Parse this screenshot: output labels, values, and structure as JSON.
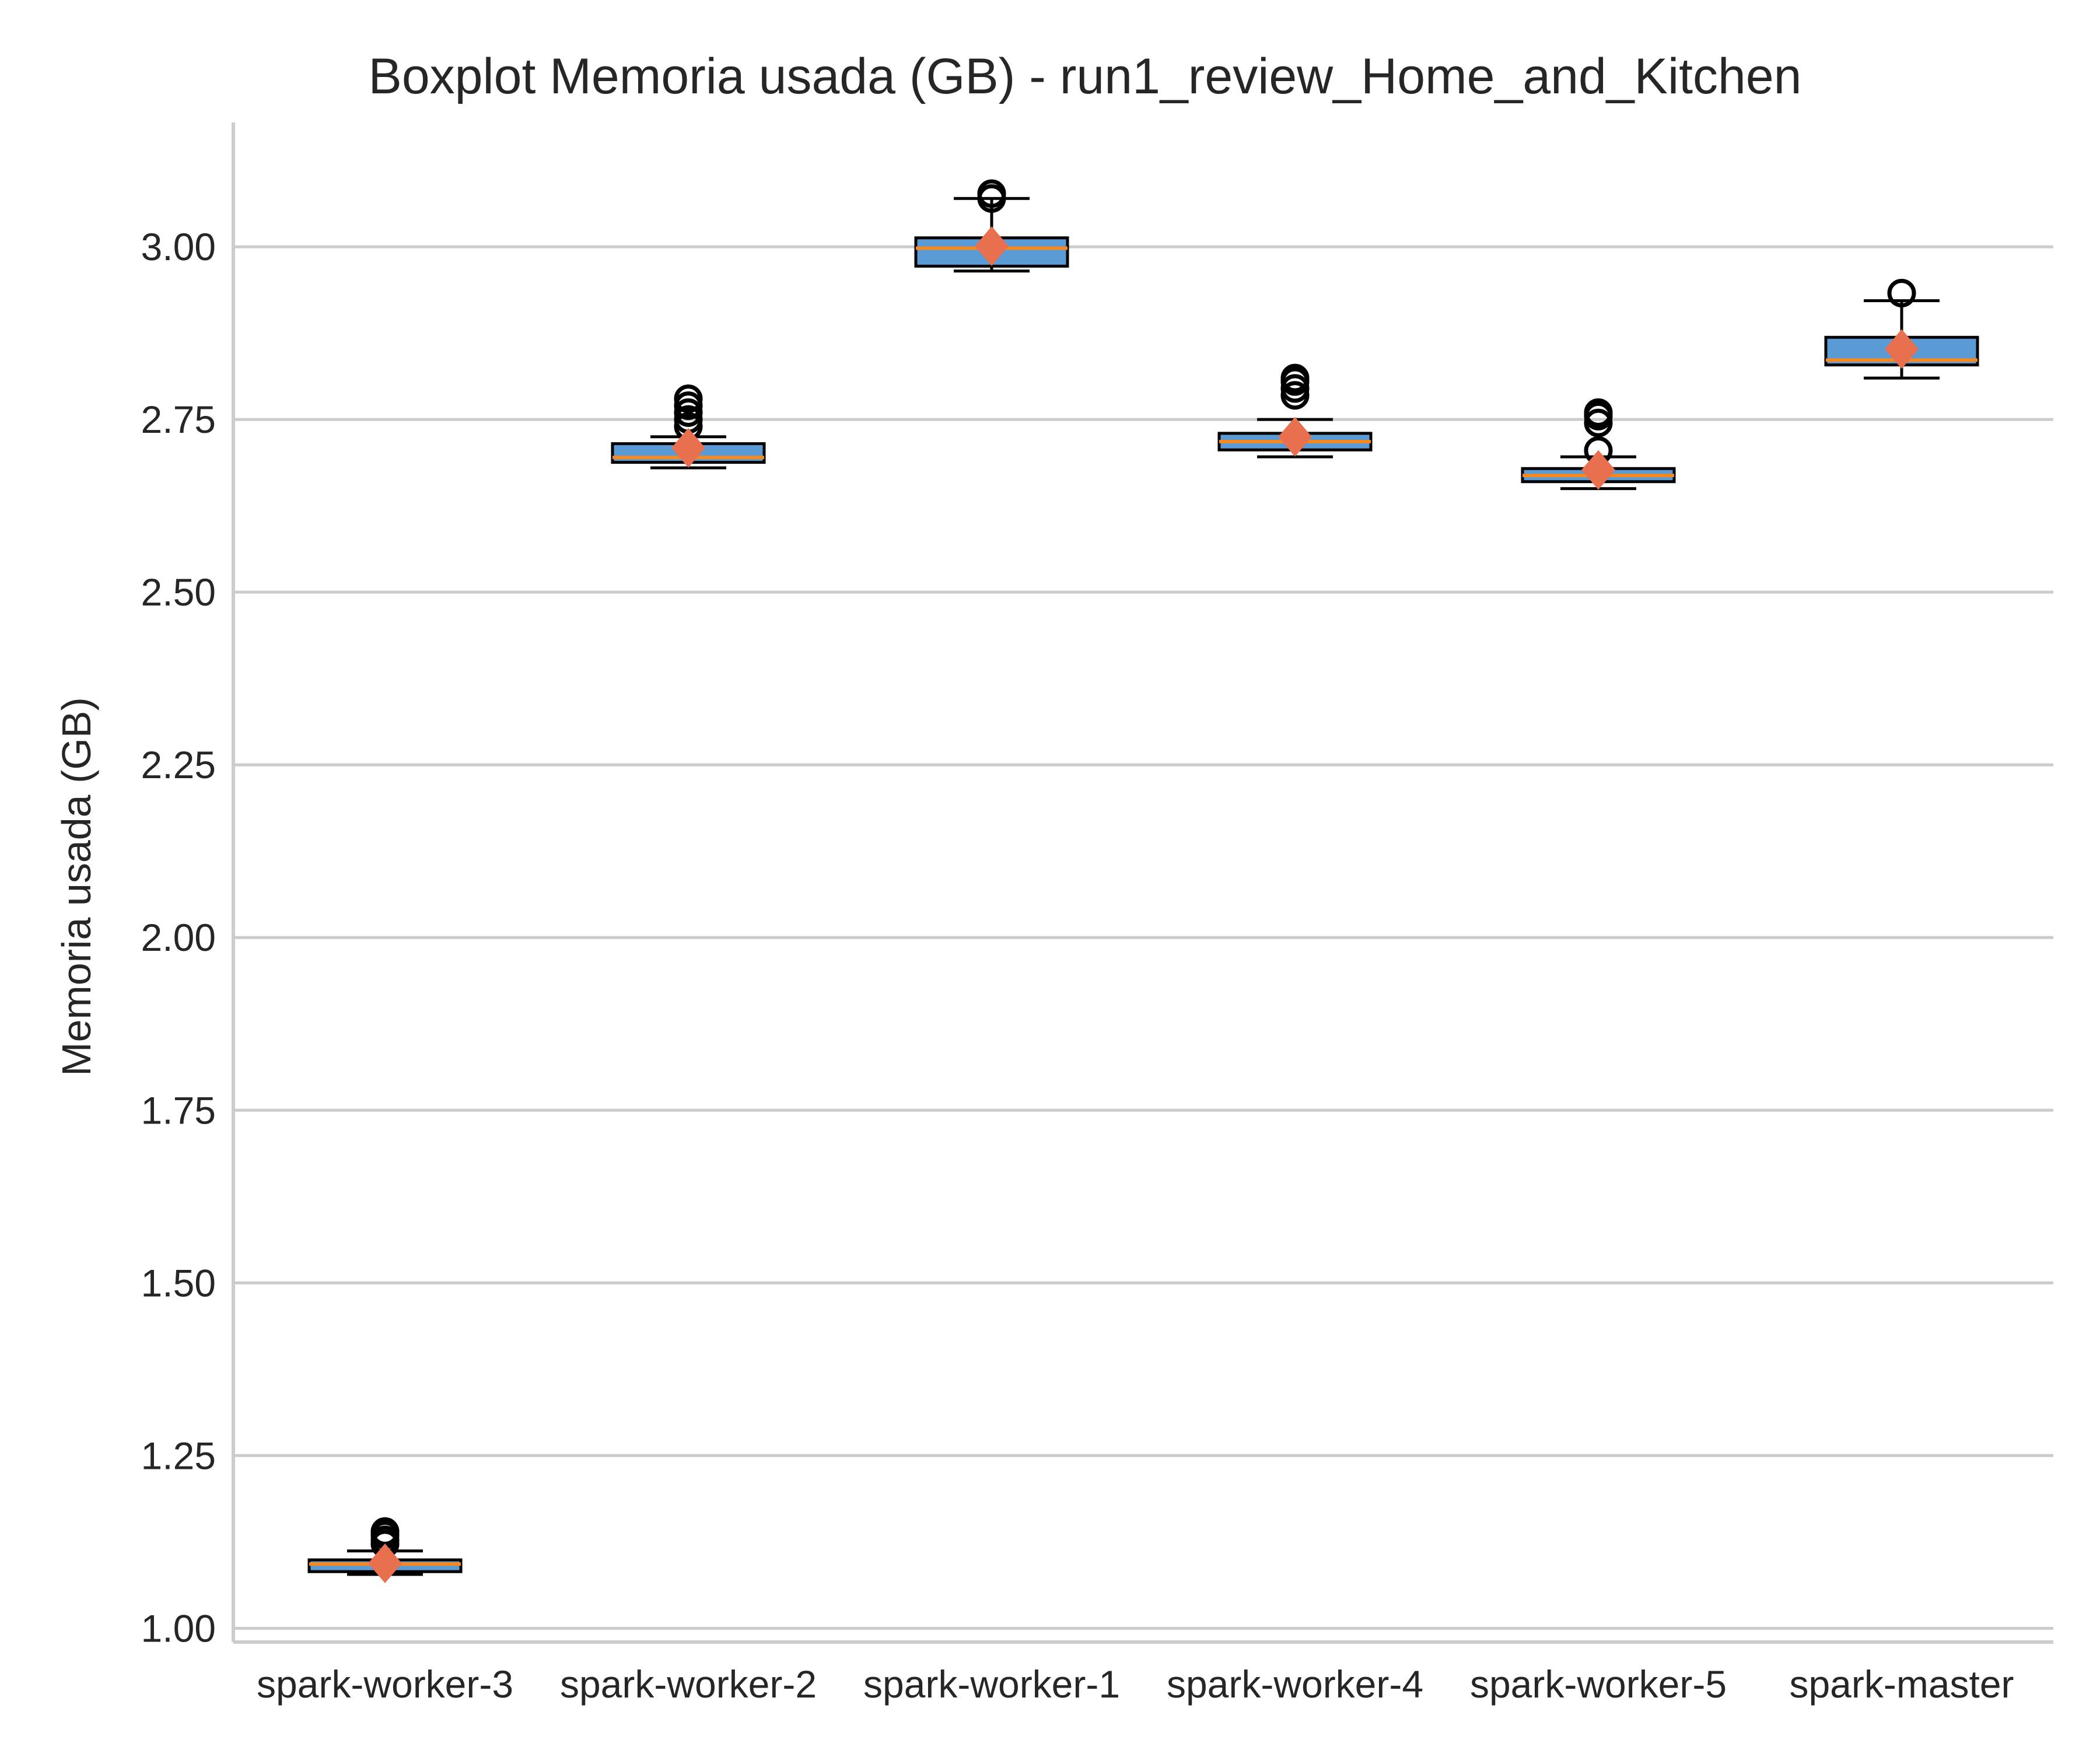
{
  "chart_data": {
    "type": "boxplot",
    "title": "Boxplot Memoria usada (GB) - run1_review_Home_and_Kitchen",
    "xlabel": "",
    "ylabel": "Memoria usada (GB)",
    "ylim": [
      0.98,
      3.18
    ],
    "yticks": [
      1.0,
      1.25,
      1.5,
      1.75,
      2.0,
      2.25,
      2.5,
      2.75,
      3.0
    ],
    "ytick_labels": [
      "1.00",
      "1.25",
      "1.50",
      "1.75",
      "2.00",
      "2.25",
      "2.50",
      "2.75",
      "3.00"
    ],
    "grid": "horizontal",
    "categories": [
      "spark-worker-3",
      "spark-worker-2",
      "spark-worker-1",
      "spark-worker-4",
      "spark-worker-5",
      "spark-master"
    ],
    "boxes": [
      {
        "category": "spark-worker-3",
        "whisker_low": 1.078,
        "q1": 1.082,
        "median": 1.093,
        "q3": 1.099,
        "whisker_high": 1.112,
        "mean": 1.094,
        "outliers": [
          1.122,
          1.128,
          1.135,
          1.14
        ]
      },
      {
        "category": "spark-worker-2",
        "whisker_low": 2.68,
        "q1": 2.688,
        "median": 2.695,
        "q3": 2.715,
        "whisker_high": 2.725,
        "mean": 2.709,
        "outliers": [
          2.74,
          2.75,
          2.76,
          2.77,
          2.78
        ]
      },
      {
        "category": "spark-worker-1",
        "whisker_low": 2.965,
        "q1": 2.972,
        "median": 2.998,
        "q3": 3.013,
        "whisker_high": 3.07,
        "mean": 3.001,
        "outliers": [
          3.07,
          3.077
        ]
      },
      {
        "category": "spark-worker-4",
        "whisker_low": 2.696,
        "q1": 2.706,
        "median": 2.718,
        "q3": 2.73,
        "whisker_high": 2.75,
        "mean": 2.725,
        "outliers": [
          2.785,
          2.795,
          2.805,
          2.81
        ]
      },
      {
        "category": "spark-worker-5",
        "whisker_low": 2.65,
        "q1": 2.66,
        "median": 2.669,
        "q3": 2.679,
        "whisker_high": 2.696,
        "mean": 2.677,
        "outliers": [
          2.705,
          2.745,
          2.755,
          2.76
        ]
      },
      {
        "category": "spark-master",
        "whisker_low": 2.81,
        "q1": 2.829,
        "median": 2.836,
        "q3": 2.869,
        "whisker_high": 2.922,
        "mean": 2.852,
        "outliers": [
          2.933
        ]
      }
    ]
  },
  "colors": {
    "box_fill": "#5b9bd5",
    "box_edge": "#000000",
    "median": "#f5891f",
    "mean_marker": "#e8704f",
    "grid": "#cccccc",
    "axis": "#cccccc",
    "text": "#262626"
  }
}
